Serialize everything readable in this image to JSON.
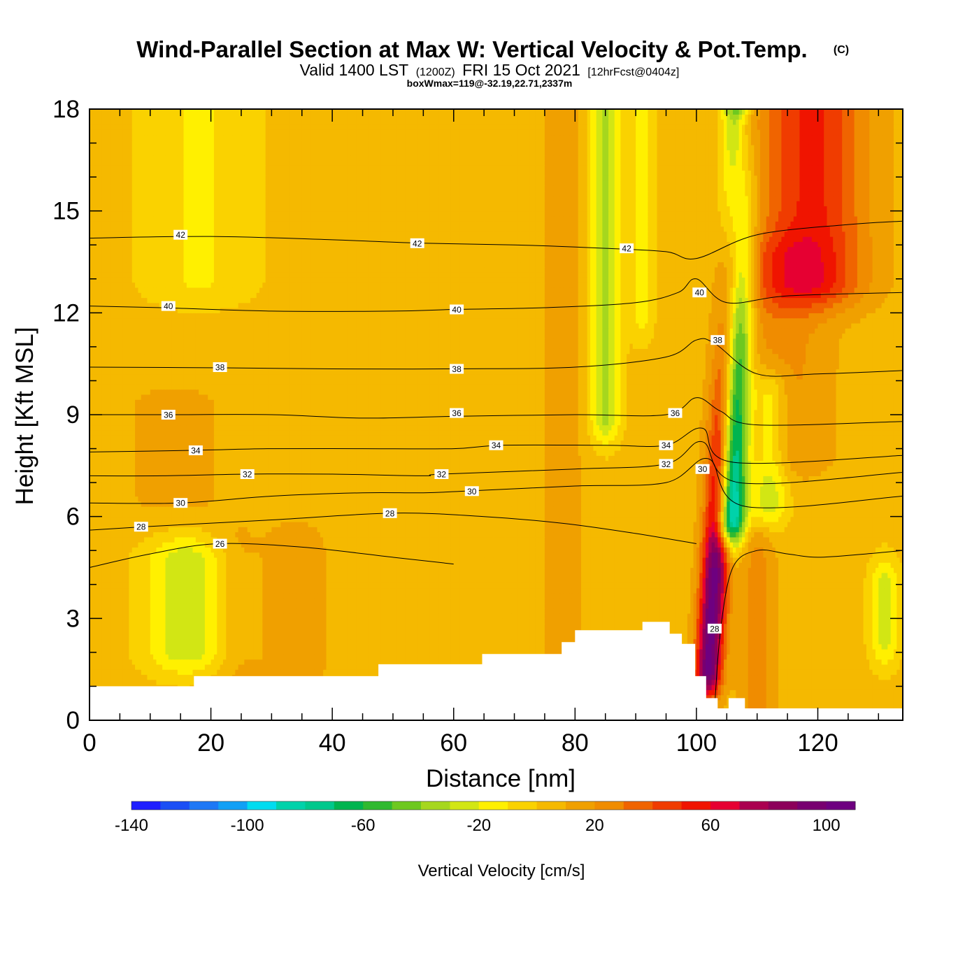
{
  "title": {
    "main": "Wind-Parallel Section at Max W: Vertical Velocity & Pot.Temp.",
    "copyright": "(C)",
    "valid_prefix": "Valid 1400 LST",
    "valid_zulu": "(1200Z)",
    "valid_date": "FRI 15 Oct 2021",
    "forecast_info": "[12hrFcst@0404z]",
    "box_info": "boxWmax=119@-32.19,22.71,2337m"
  },
  "chart_data": {
    "type": "heatmap",
    "xlabel": "Distance [nm]",
    "ylabel": "Height [Kft MSL]",
    "xlim": [
      0,
      134
    ],
    "ylim": [
      0,
      18
    ],
    "xticks": [
      0,
      20,
      40,
      60,
      80,
      100,
      120
    ],
    "yticks": [
      0,
      3,
      6,
      9,
      12,
      15,
      18
    ],
    "background_value": 5,
    "velocity_features": [
      {
        "x_center": 102,
        "x_halfwidth": 2.2,
        "y_bottom": 1.5,
        "y_top": 17.5,
        "lean": 0.35,
        "value": 110
      },
      {
        "x_center": 105.5,
        "x_halfwidth": 2.4,
        "y_bottom": 6.0,
        "y_top": 18.2,
        "lean": 0.15,
        "value": -130
      },
      {
        "x_center": 119,
        "x_halfwidth": 9,
        "y_bottom": 13,
        "y_top": 19,
        "lean": 0,
        "value": 55
      },
      {
        "x_center": 114,
        "x_halfwidth": 8,
        "y_bottom": 8,
        "y_top": 13.5,
        "lean": 0,
        "value": 25
      },
      {
        "x_center": 85,
        "x_halfwidth": 2.5,
        "y_bottom": 9,
        "y_top": 18,
        "lean": 0,
        "value": -35
      },
      {
        "x_center": 91,
        "x_halfwidth": 2.0,
        "y_bottom": 12,
        "y_top": 18,
        "lean": 0,
        "value": -15
      },
      {
        "x_center": 78,
        "x_halfwidth": 3,
        "y_bottom": 2,
        "y_top": 18,
        "lean": 0,
        "value": 18
      },
      {
        "x_center": 18,
        "x_halfwidth": 10,
        "y_bottom": 13,
        "y_top": 18,
        "lean": 0,
        "value": -12
      },
      {
        "x_center": 16,
        "x_halfwidth": 7,
        "y_bottom": 2.2,
        "y_top": 4.6,
        "lean": 0,
        "value": -30
      },
      {
        "x_center": 34,
        "x_halfwidth": 5,
        "y_bottom": 1.5,
        "y_top": 5,
        "lean": 0,
        "value": 18
      },
      {
        "x_center": 24,
        "x_halfwidth": 4,
        "y_bottom": 1.5,
        "y_top": 5,
        "lean": 0,
        "value": 15
      },
      {
        "x_center": 14,
        "x_halfwidth": 12,
        "y_bottom": 6.5,
        "y_top": 9.3,
        "lean": 0,
        "value": 12
      },
      {
        "x_center": 112,
        "x_halfwidth": 3,
        "y_bottom": 6.5,
        "y_top": 9.5,
        "lean": 0,
        "value": -30
      },
      {
        "x_center": 131,
        "x_halfwidth": 2.5,
        "y_bottom": 2.4,
        "y_top": 4,
        "lean": 0,
        "value": -25
      },
      {
        "x_center": 110,
        "x_halfwidth": 3,
        "y_bottom": 0.5,
        "y_top": 5,
        "lean": 0,
        "value": 25
      },
      {
        "x_center": 64,
        "x_halfwidth": 3,
        "y_bottom": 1.8,
        "y_top": 18,
        "lean": 0,
        "value": 10
      },
      {
        "x_center": 44,
        "x_halfwidth": 2,
        "y_bottom": 5,
        "y_top": 18,
        "lean": 0,
        "value": 10
      }
    ],
    "theta_contours": [
      {
        "value": 42,
        "x": [
          0,
          20,
          40,
          55,
          70,
          85,
          95,
          100,
          110,
          125,
          134
        ],
        "y": [
          14.2,
          14.25,
          14.15,
          14.05,
          14.0,
          13.9,
          13.8,
          13.6,
          14.3,
          14.6,
          14.7
        ]
      },
      {
        "value": 40,
        "x": [
          0,
          12,
          30,
          50,
          60,
          75,
          90,
          97,
          100,
          105,
          115,
          134
        ],
        "y": [
          12.2,
          12.15,
          12.05,
          12.05,
          12.1,
          12.15,
          12.3,
          12.6,
          13.0,
          12.3,
          12.5,
          12.6
        ]
      },
      {
        "value": 38,
        "x": [
          0,
          22,
          40,
          60,
          80,
          95,
          100,
          103,
          110,
          120,
          134
        ],
        "y": [
          10.4,
          10.38,
          10.35,
          10.35,
          10.4,
          10.7,
          11.2,
          11.1,
          10.2,
          10.2,
          10.3
        ]
      },
      {
        "value": 36,
        "x": [
          0,
          13,
          30,
          45,
          60,
          80,
          95,
          100,
          104,
          110,
          134
        ],
        "y": [
          9.0,
          9.0,
          9.0,
          8.9,
          8.95,
          9.0,
          9.0,
          9.5,
          9.1,
          8.7,
          8.8
        ]
      },
      {
        "value": 34,
        "x": [
          0,
          17,
          30,
          45,
          60,
          68,
          85,
          95,
          101,
          106,
          134
        ],
        "y": [
          7.9,
          7.95,
          8.0,
          8.0,
          8.0,
          8.1,
          8.1,
          8.1,
          8.6,
          7.6,
          7.8
        ]
      },
      {
        "value": 32,
        "x": [
          0,
          12,
          26,
          40,
          55,
          58,
          80,
          95,
          101,
          107,
          134
        ],
        "y": [
          7.2,
          7.2,
          7.25,
          7.25,
          7.2,
          7.25,
          7.4,
          7.55,
          8.2,
          7.0,
          7.3
        ]
      },
      {
        "value": 30,
        "x": [
          0,
          15,
          30,
          45,
          55,
          62,
          80,
          95,
          102,
          108,
          134
        ],
        "y": [
          6.4,
          6.4,
          6.6,
          6.7,
          6.7,
          6.75,
          6.9,
          7.0,
          7.7,
          6.3,
          6.6
        ]
      },
      {
        "value": 28,
        "x": [
          0,
          9,
          30,
          50,
          65,
          78,
          90,
          100
        ],
        "y": [
          5.6,
          5.7,
          5.9,
          6.1,
          6.0,
          5.8,
          5.5,
          5.2
        ]
      },
      {
        "value": 26,
        "x": [
          0,
          10,
          21,
          35,
          50,
          60
        ],
        "y": [
          4.5,
          4.9,
          5.2,
          5.1,
          4.8,
          4.6
        ]
      },
      {
        "value": 28,
        "x": [
          103,
          104,
          106,
          110,
          115,
          120,
          128,
          134
        ],
        "y": [
          0.4,
          2.7,
          4.5,
          5.0,
          4.9,
          4.8,
          4.9,
          5.0
        ]
      }
    ],
    "contour_labels": [
      {
        "value": 42,
        "x": 15,
        "y": 14.3
      },
      {
        "value": 42,
        "x": 54,
        "y": 14.05
      },
      {
        "value": 42,
        "x": 88.5,
        "y": 13.9
      },
      {
        "value": 40,
        "x": 13,
        "y": 12.2
      },
      {
        "value": 40,
        "x": 60.5,
        "y": 12.1
      },
      {
        "value": 40,
        "x": 100.5,
        "y": 12.6
      },
      {
        "value": 38,
        "x": 21.5,
        "y": 10.4
      },
      {
        "value": 38,
        "x": 60.5,
        "y": 10.35
      },
      {
        "value": 38,
        "x": 103.5,
        "y": 11.2
      },
      {
        "value": 36,
        "x": 13,
        "y": 9.0
      },
      {
        "value": 36,
        "x": 60.5,
        "y": 9.05
      },
      {
        "value": 36,
        "x": 96.5,
        "y": 9.05
      },
      {
        "value": 34,
        "x": 17.5,
        "y": 7.95
      },
      {
        "value": 34,
        "x": 67,
        "y": 8.1
      },
      {
        "value": 34,
        "x": 95,
        "y": 8.1
      },
      {
        "value": 32,
        "x": 26,
        "y": 7.25
      },
      {
        "value": 32,
        "x": 58,
        "y": 7.25
      },
      {
        "value": 32,
        "x": 95,
        "y": 7.55
      },
      {
        "value": 30,
        "x": 15,
        "y": 6.4
      },
      {
        "value": 30,
        "x": 63,
        "y": 6.75
      },
      {
        "value": 30,
        "x": 101,
        "y": 7.4
      },
      {
        "value": 28,
        "x": 8.5,
        "y": 5.7
      },
      {
        "value": 28,
        "x": 49.5,
        "y": 6.1
      },
      {
        "value": 28,
        "x": 103,
        "y": 2.7
      },
      {
        "value": 26,
        "x": 21.5,
        "y": 5.2
      }
    ],
    "terrain": {
      "x": [
        0,
        17.2,
        17.2,
        47.6,
        47.6,
        64.7,
        64.7,
        77.8,
        77.8,
        80,
        80,
        91.1,
        91.1,
        95.6,
        95.6,
        97.6,
        97.6,
        99.8,
        99.8,
        101.6,
        101.6,
        103.5,
        103.5,
        105.3,
        105.3,
        108,
        108,
        114.9,
        114.9,
        134
      ],
      "y": [
        1.0,
        1.0,
        1.3,
        1.3,
        1.65,
        1.65,
        1.95,
        1.95,
        2.3,
        2.3,
        2.65,
        2.65,
        2.9,
        2.9,
        2.55,
        2.55,
        2.25,
        2.25,
        1.3,
        1.3,
        0.65,
        0.65,
        0.35,
        0.35,
        0.65,
        0.65,
        0.35,
        0.35,
        0.35,
        0.35
      ]
    }
  },
  "colorbar": {
    "colors": [
      "#1e1eff",
      "#1b4ff5",
      "#1e78f5",
      "#11a0f5",
      "#00dcf0",
      "#00d2aa",
      "#00c88c",
      "#00b450",
      "#30b930",
      "#6ec820",
      "#a6d71e",
      "#d2e614",
      "#fff000",
      "#fad200",
      "#f5b900",
      "#f0a000",
      "#f08c00",
      "#f06400",
      "#f03c00",
      "#f01400",
      "#e60032",
      "#aa0050",
      "#8c005a",
      "#780070",
      "#6e0080"
    ],
    "min": -140,
    "step": 10,
    "labels": [
      {
        "text": "-140",
        "value": -140
      },
      {
        "text": "-100",
        "value": -100
      },
      {
        "text": "-60",
        "value": -60
      },
      {
        "text": "-20",
        "value": -20
      },
      {
        "text": "20",
        "value": 20
      },
      {
        "text": "60",
        "value": 60
      },
      {
        "text": "100",
        "value": 100
      }
    ],
    "title": "Vertical Velocity [cm/s]"
  }
}
